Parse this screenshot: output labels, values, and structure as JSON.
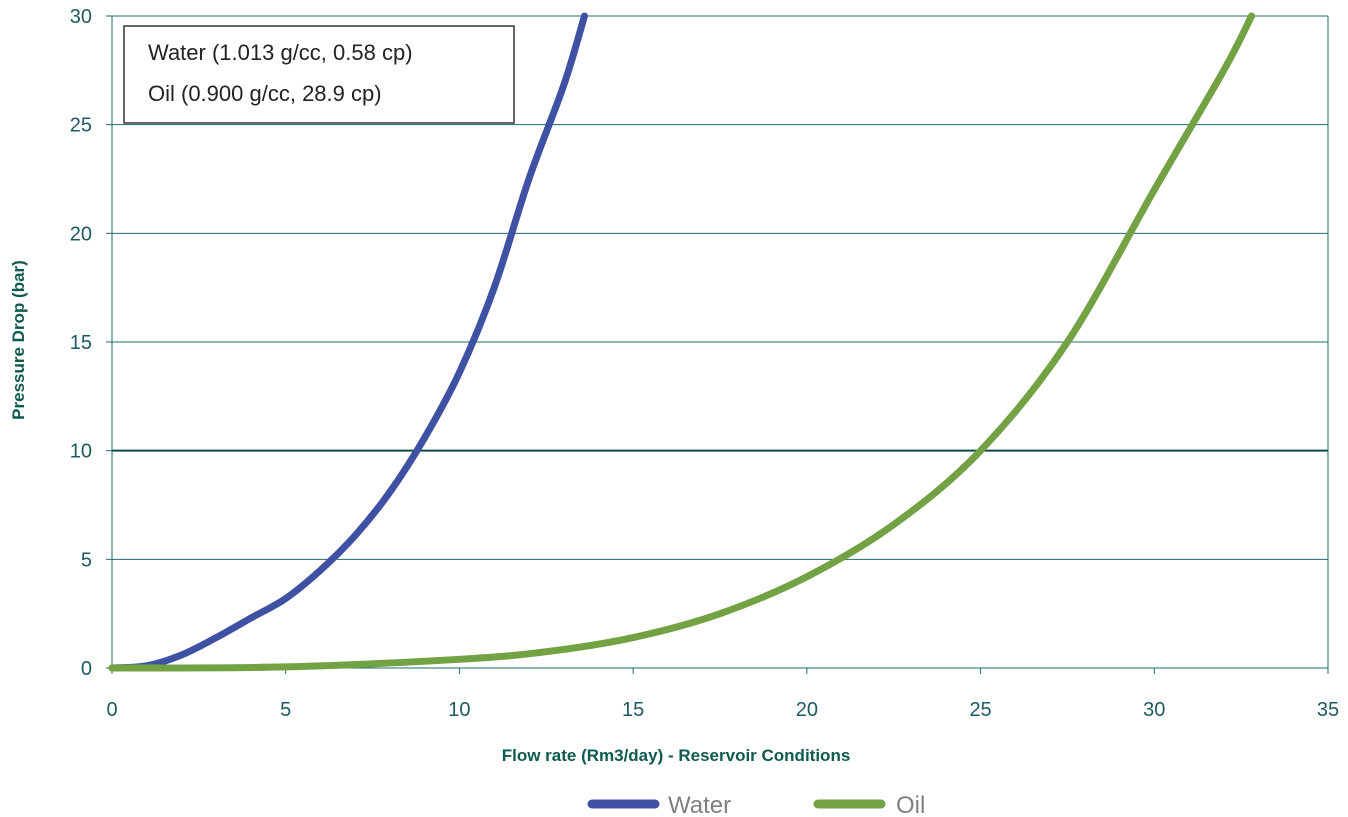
{
  "chart_data": {
    "type": "line",
    "title": "",
    "xlabel": "Flow rate (Rm3/day) -  Reservoir Conditions",
    "ylabel": "Pressure Drop (bar)",
    "xlim": [
      0,
      35
    ],
    "ylim": [
      0,
      30
    ],
    "x_ticks": [
      "0",
      "5",
      "10",
      "15",
      "20",
      "25",
      "30",
      "35"
    ],
    "y_ticks": [
      "0",
      "5",
      "10",
      "15",
      "20",
      "25",
      "30"
    ],
    "grid": "horizontal",
    "legend_position": "bottom-center",
    "annotation_lines": [
      "Water (1.013 g/cc, 0.58 cp)",
      "Oil (0.900 g/cc, 28.9 cp)"
    ],
    "series": [
      {
        "name": "Water",
        "color": "#3f51a3",
        "points": [
          [
            0,
            0
          ],
          [
            1,
            0.1
          ],
          [
            2,
            0.6
          ],
          [
            3,
            1.4
          ],
          [
            4,
            2.3
          ],
          [
            5,
            3.2
          ],
          [
            6,
            4.5
          ],
          [
            7,
            6.1
          ],
          [
            8,
            8.1
          ],
          [
            9,
            10.6
          ],
          [
            10,
            13.6
          ],
          [
            11,
            17.5
          ],
          [
            12,
            22.5
          ],
          [
            13,
            26.8
          ],
          [
            13.6,
            30
          ]
        ]
      },
      {
        "name": "Oil",
        "color": "#72a244",
        "points": [
          [
            0,
            0
          ],
          [
            5,
            0.05
          ],
          [
            10,
            0.4
          ],
          [
            12.5,
            0.75
          ],
          [
            15,
            1.4
          ],
          [
            17.5,
            2.5
          ],
          [
            20,
            4.2
          ],
          [
            22.5,
            6.6
          ],
          [
            25,
            10
          ],
          [
            27.5,
            15
          ],
          [
            30,
            22
          ],
          [
            32,
            27.5
          ],
          [
            32.8,
            30
          ]
        ]
      }
    ]
  }
}
